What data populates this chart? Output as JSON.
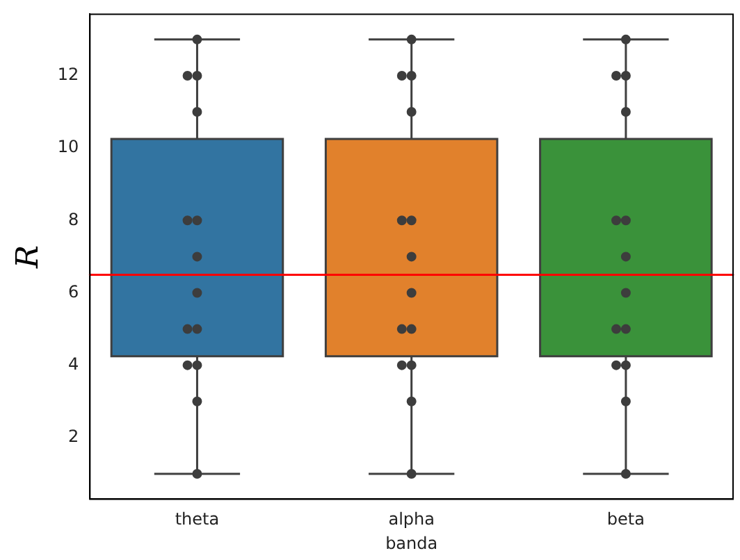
{
  "chart_data": {
    "type": "box",
    "xlabel": "banda",
    "ylabel": "R",
    "categories": [
      "theta",
      "alpha",
      "beta"
    ],
    "colors": [
      "#3274a1",
      "#e1812c",
      "#3a923a"
    ],
    "boxes": [
      {
        "low": 1,
        "q1": 4.25,
        "median": 6.5,
        "q3": 10.25,
        "high": 13
      },
      {
        "low": 1,
        "q1": 4.25,
        "median": 6.5,
        "q3": 10.25,
        "high": 13
      },
      {
        "low": 1,
        "q1": 4.25,
        "median": 6.5,
        "q3": 10.25,
        "high": 13
      }
    ],
    "series": [
      {
        "type": "scatter",
        "color": "#3d3d3d",
        "marker": "circle",
        "x": [
          "theta",
          "theta",
          "theta",
          "theta",
          "theta",
          "theta",
          "theta",
          "theta",
          "theta",
          "theta",
          "theta",
          "theta",
          "theta",
          "theta",
          "alpha",
          "alpha",
          "alpha",
          "alpha",
          "alpha",
          "alpha",
          "alpha",
          "alpha",
          "alpha",
          "alpha",
          "alpha",
          "alpha",
          "alpha",
          "alpha",
          "beta",
          "beta",
          "beta",
          "beta",
          "beta",
          "beta",
          "beta",
          "beta",
          "beta",
          "beta",
          "beta",
          "beta",
          "beta",
          "beta"
        ],
        "values": [
          1,
          3,
          4,
          4,
          5,
          5,
          6,
          7,
          8,
          8,
          11,
          12,
          12,
          13,
          1,
          3,
          4,
          4,
          5,
          5,
          6,
          7,
          8,
          8,
          11,
          12,
          12,
          13,
          1,
          3,
          4,
          4,
          5,
          5,
          6,
          7,
          8,
          8,
          11,
          12,
          12,
          13
        ]
      }
    ],
    "ref_lines": [
      {
        "axis": "y",
        "value": 6.5,
        "color": "#ff0000"
      }
    ],
    "ylim": [
      0.3,
      13.7
    ],
    "yticks": [
      2,
      4,
      6,
      8,
      10,
      12
    ],
    "grid": false,
    "legend": false
  }
}
